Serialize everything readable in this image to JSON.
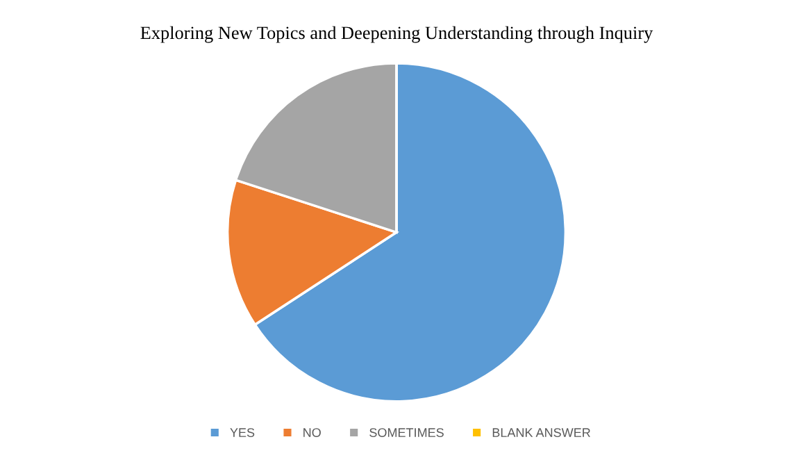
{
  "chart_data": {
    "type": "pie",
    "title": "Exploring New Topics and Deepening Understanding through Inquiry",
    "categories": [
      "YES",
      "NO",
      "SOMETIMES",
      "BLANK ANSWER"
    ],
    "values": [
      65.8,
      14.2,
      20.0,
      0
    ],
    "colors": [
      "#5b9bd5",
      "#ed7d31",
      "#a5a5a5",
      "#ffc000"
    ],
    "legend": "bottom"
  }
}
